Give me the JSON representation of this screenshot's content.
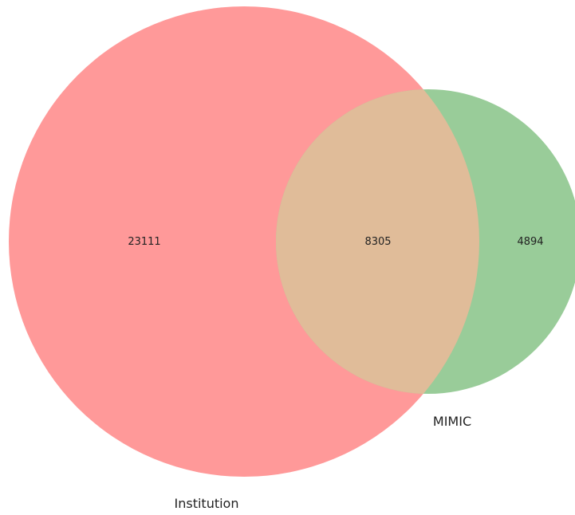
{
  "venn": {
    "sets": [
      {
        "name": "Institution",
        "color": "#ff9999"
      },
      {
        "name": "MIMIC",
        "color": "#99cc99"
      }
    ],
    "intersection_color": "#e0bc99",
    "counts": {
      "institution_only": "23111",
      "both": "8305",
      "mimic_only": "4894"
    }
  }
}
